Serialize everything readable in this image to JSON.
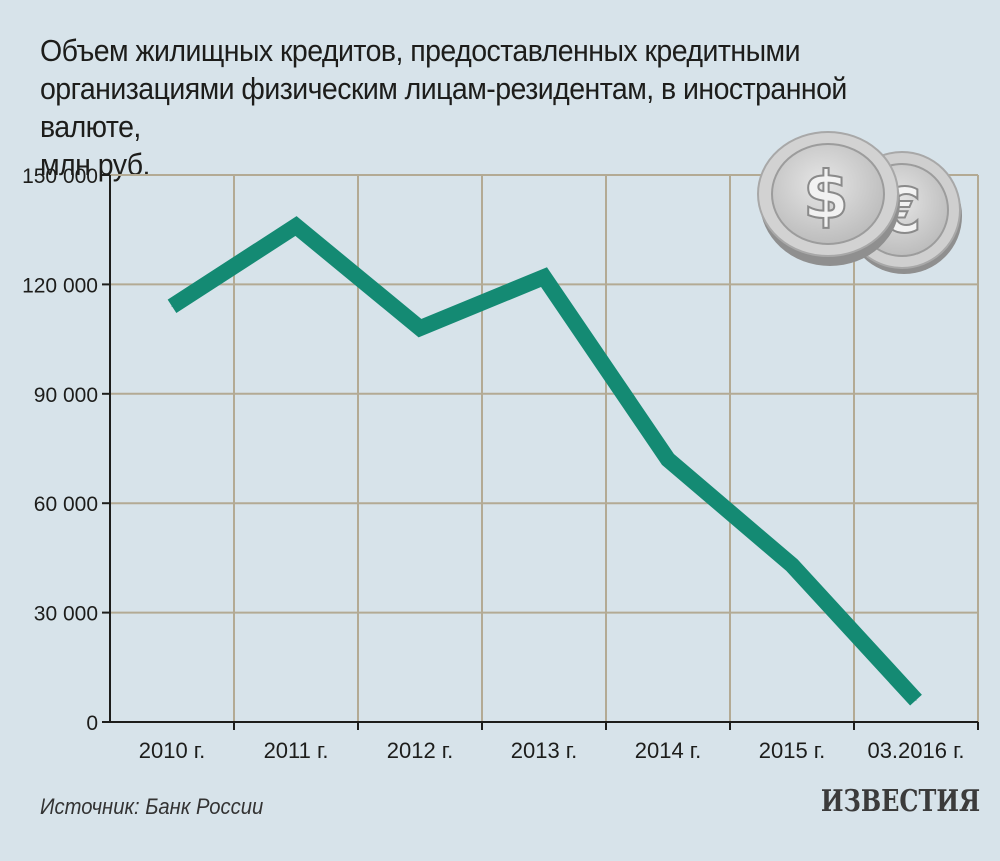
{
  "title": "Объем жилищных кредитов, предоставленных кредитными\nорганизациями физическим лицам-резидентам, в иностранной валюте,\nмлн руб.",
  "source": "Источник: Банк России",
  "logo": "ИЗВЕСТИЯ",
  "chart_data": {
    "type": "line",
    "title": "Объем жилищных кредитов, предоставленных кредитными организациями физическим лицам-резидентам, в иностранной валюте, млн руб.",
    "categories": [
      "2010 г.",
      "2011 г.",
      "2012 г.",
      "2013 г.",
      "2014 г.",
      "2015 г.",
      "03.2016 г."
    ],
    "y_ticks": [
      0,
      30000,
      60000,
      90000,
      120000,
      150000
    ],
    "y_tick_labels": [
      "0",
      "30 000",
      "60 000",
      "90 000",
      "120 000",
      "150 000"
    ],
    "ylim": [
      0,
      150000
    ],
    "grid": true,
    "series": [
      {
        "values": [
          114000,
          136000,
          108000,
          122000,
          72000,
          43000,
          6000
        ]
      }
    ],
    "colors": {
      "line": "#148a73",
      "grid": "#b3aa94",
      "axis": "#1d1d1b",
      "background": "#d7e3ea"
    }
  },
  "icons": {
    "coin_1": "dollar-coin-icon",
    "coin_2": "euro-coin-icon"
  }
}
